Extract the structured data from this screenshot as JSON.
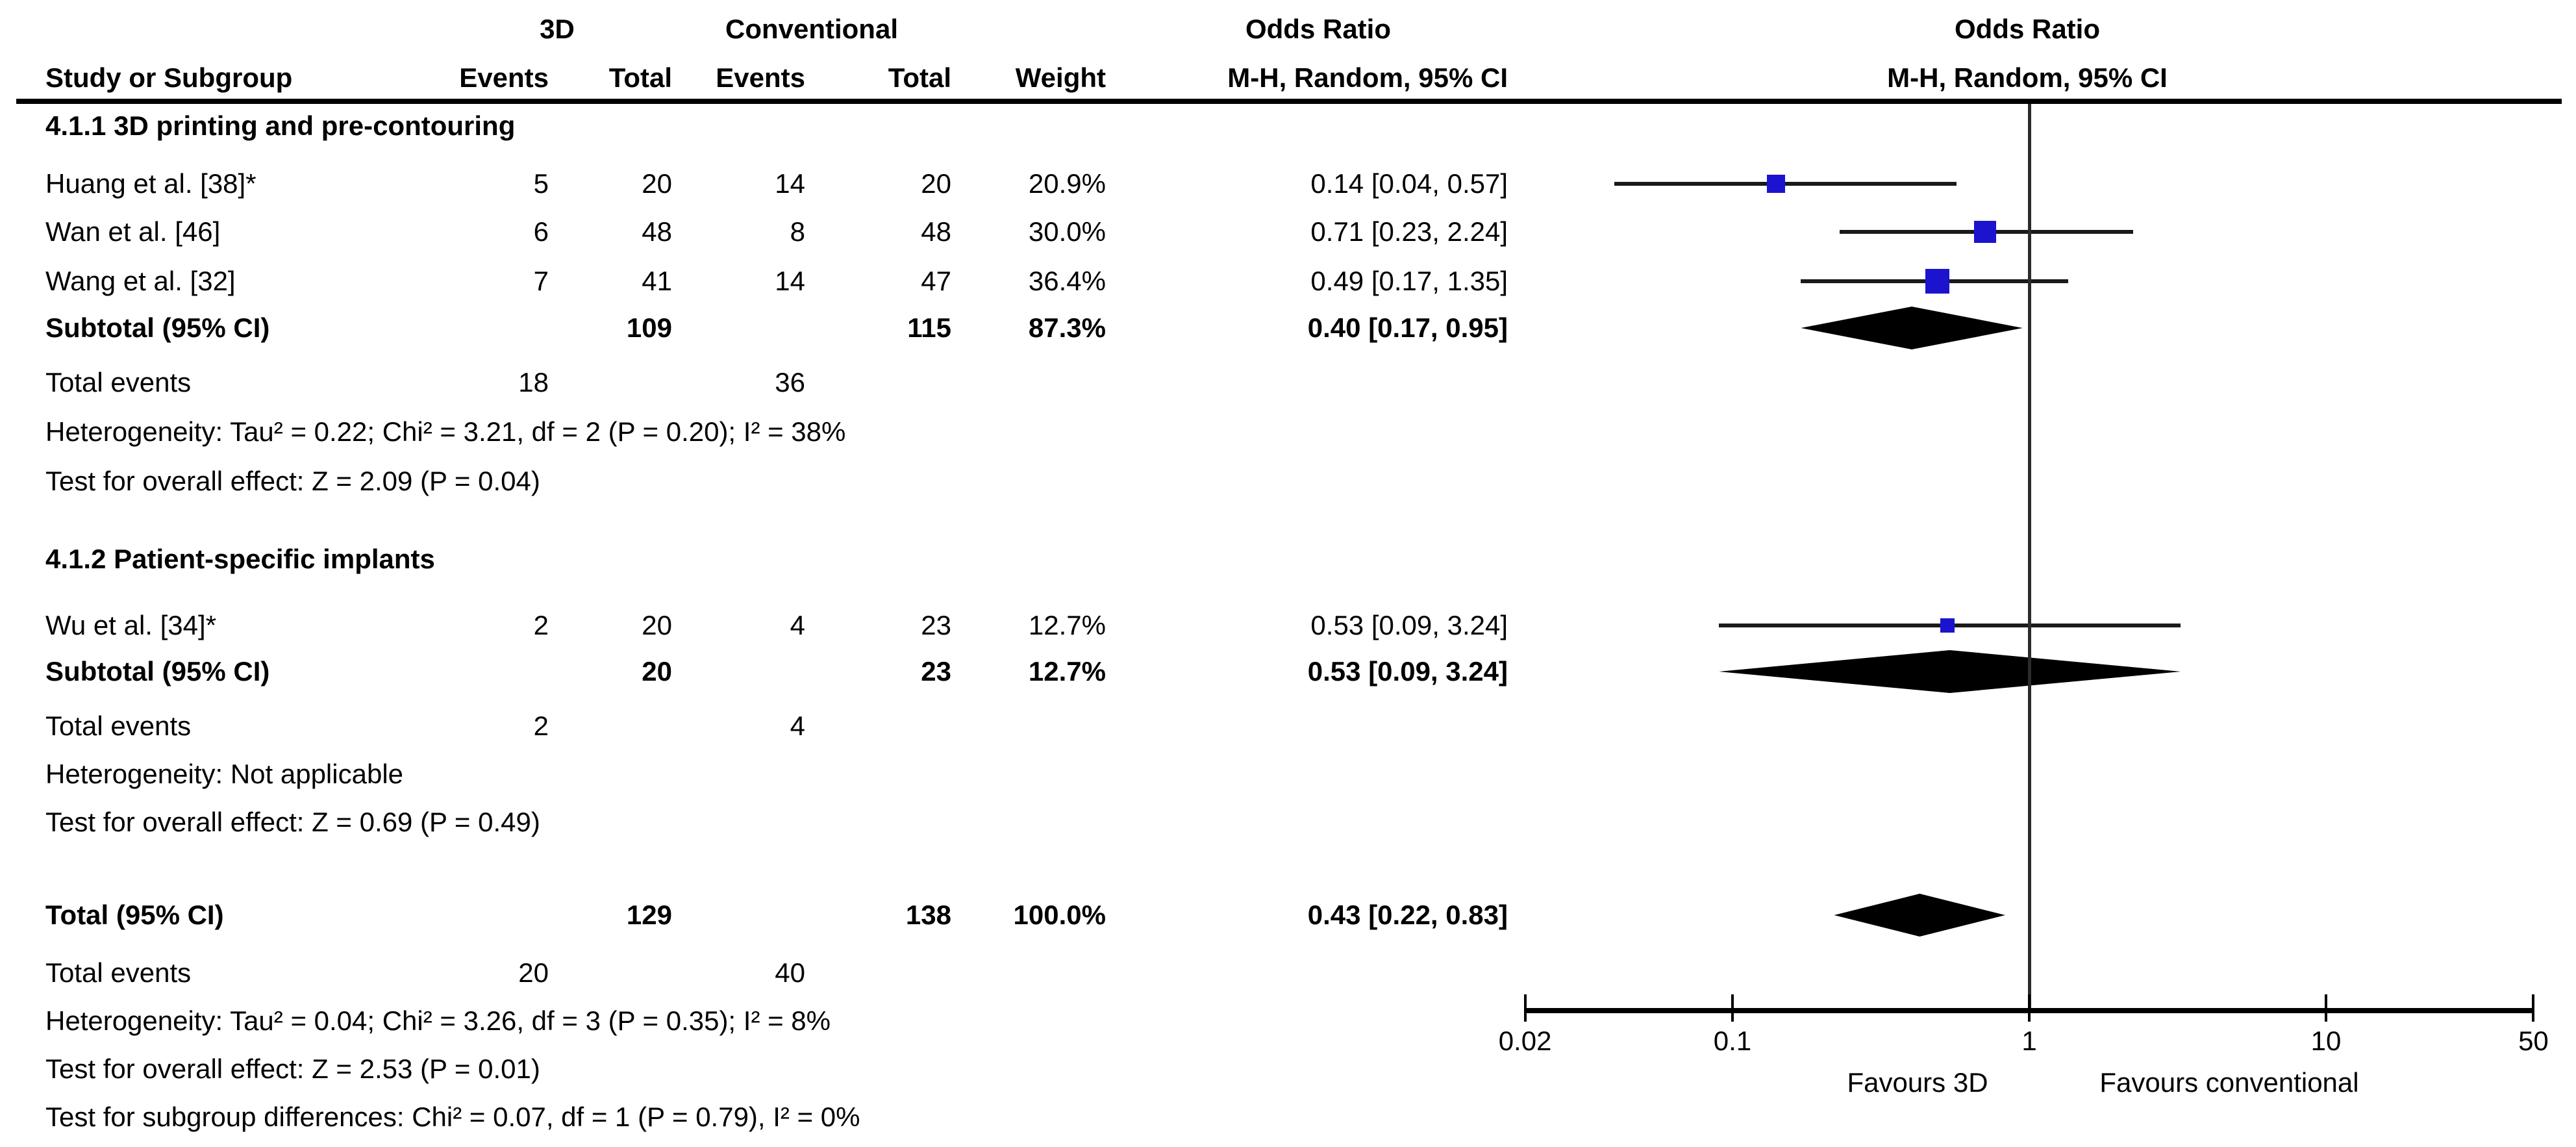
{
  "table": {
    "header": {
      "group_3d": "3D",
      "group_conventional": "Conventional",
      "or_col_title": "Odds Ratio",
      "plot_col_title": "Odds Ratio",
      "study": "Study or Subgroup",
      "events_3d": "Events",
      "total_3d": "Total",
      "events_conv": "Events",
      "total_conv": "Total",
      "weight": "Weight",
      "method": "M-H, Random, 95% CI",
      "plot_method": "M-H, Random, 95% CI"
    }
  },
  "colors": {
    "square": "#1c13cf",
    "diamond": "#000000",
    "ci_line": "#1a1a1a",
    "axis": "#000000"
  },
  "chart_data": {
    "type": "forest",
    "effect_measure": "Odds Ratio, M-H, Random, 95% CI",
    "x_scale": "log",
    "x_range": [
      0.02,
      50
    ],
    "x_tick_values": [
      0.02,
      0.1,
      1,
      10,
      50
    ],
    "x_tick_labels": [
      "0.02",
      "0.1",
      "1",
      "10",
      "50"
    ],
    "null_value": 1,
    "favours_left": "Favours 3D",
    "favours_right": "Favours conventional",
    "rows": [
      {
        "kind": "subgroup",
        "label": "4.1.1 3D printing and pre-contouring"
      },
      {
        "kind": "study",
        "label": "Huang et al. [38]*",
        "e1": "5",
        "t1": "20",
        "e2": "14",
        "t2": "20",
        "weight": "20.9%",
        "weight_pct": 20.9,
        "or_text": "0.14 [0.04, 0.57]",
        "or": 0.14,
        "lo": 0.04,
        "hi": 0.57
      },
      {
        "kind": "study",
        "label": "Wan et al. [46]",
        "e1": "6",
        "t1": "48",
        "e2": "8",
        "t2": "48",
        "weight": "30.0%",
        "weight_pct": 30.0,
        "or_text": "0.71 [0.23, 2.24]",
        "or": 0.71,
        "lo": 0.23,
        "hi": 2.24
      },
      {
        "kind": "study",
        "label": "Wang et al. [32]",
        "e1": "7",
        "t1": "41",
        "e2": "14",
        "t2": "47",
        "weight": "36.4%",
        "weight_pct": 36.4,
        "or_text": "0.49 [0.17, 1.35]",
        "or": 0.49,
        "lo": 0.17,
        "hi": 1.35
      },
      {
        "kind": "subtotal",
        "label": "Subtotal (95% CI)",
        "t1": "109",
        "t2": "115",
        "weight": "87.3%",
        "or_text": "0.40 [0.17, 0.95]",
        "or": 0.4,
        "lo": 0.17,
        "hi": 0.95
      },
      {
        "kind": "totalevents",
        "label": "Total events",
        "e1": "18",
        "e2": "36"
      },
      {
        "kind": "note",
        "label": "Heterogeneity: Tau² = 0.22; Chi² = 3.21, df = 2 (P = 0.20); I² = 38%"
      },
      {
        "kind": "note",
        "label": "Test for overall effect: Z = 2.09 (P = 0.04)"
      },
      {
        "kind": "subgroup",
        "label": "4.1.2 Patient-specific implants"
      },
      {
        "kind": "study",
        "label": "Wu et al. [34]*",
        "e1": "2",
        "t1": "20",
        "e2": "4",
        "t2": "23",
        "weight": "12.7%",
        "weight_pct": 12.7,
        "or_text": "0.53 [0.09, 3.24]",
        "or": 0.53,
        "lo": 0.09,
        "hi": 3.24
      },
      {
        "kind": "subtotal",
        "label": "Subtotal (95% CI)",
        "t1": "20",
        "t2": "23",
        "weight": "12.7%",
        "or_text": "0.53 [0.09, 3.24]",
        "or": 0.53,
        "lo": 0.09,
        "hi": 3.24
      },
      {
        "kind": "totalevents",
        "label": "Total events",
        "e1": "2",
        "e2": "4"
      },
      {
        "kind": "note",
        "label": "Heterogeneity: Not applicable"
      },
      {
        "kind": "note",
        "label": "Test for overall effect: Z = 0.69 (P = 0.49)"
      },
      {
        "kind": "total",
        "label": "Total (95% CI)",
        "t1": "129",
        "t2": "138",
        "weight": "100.0%",
        "or_text": "0.43 [0.22, 0.83]",
        "or": 0.43,
        "lo": 0.22,
        "hi": 0.83
      },
      {
        "kind": "totalevents",
        "label": "Total events",
        "e1": "20",
        "e2": "40"
      },
      {
        "kind": "note",
        "label": "Heterogeneity: Tau² = 0.04; Chi² = 3.26, df = 3 (P = 0.35); I² = 8%"
      },
      {
        "kind": "note",
        "label": "Test for overall effect: Z = 2.53 (P = 0.01)"
      },
      {
        "kind": "note",
        "label": "Test for subgroup differences: Chi² = 0.07, df = 1 (P = 0.79), I² = 0%"
      }
    ]
  }
}
